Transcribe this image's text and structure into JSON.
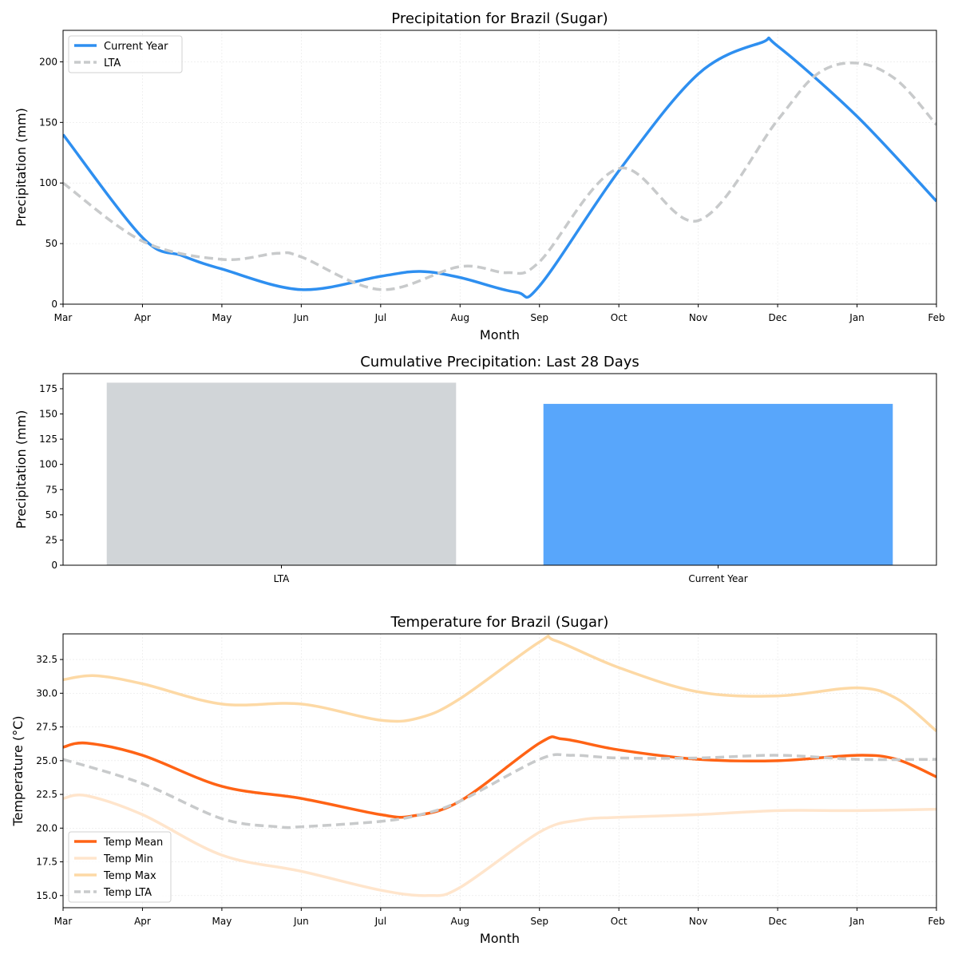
{
  "chart_data": [
    {
      "type": "line",
      "title": "Precipitation for Brazil (Sugar)",
      "xlabel": "Month",
      "ylabel": "Precipitation (mm)",
      "xticks": [
        "Mar",
        "Apr",
        "May",
        "Jun",
        "Jul",
        "Aug",
        "Sep",
        "Oct",
        "Nov",
        "Dec",
        "Jan",
        "Feb"
      ],
      "xlim": [
        0,
        11
      ],
      "ylim": [
        0,
        226
      ],
      "yticks": [
        0,
        50,
        100,
        150,
        200
      ],
      "grid": true,
      "legend_position": "top-left",
      "series": [
        {
          "name": "Current Year",
          "color": "#2e8ff0",
          "dash": false,
          "points": [
            [
              0,
              140
            ],
            [
              1,
              55
            ],
            [
              1.5,
              40
            ],
            [
              2,
              29
            ],
            [
              3,
              12
            ],
            [
              4,
              23
            ],
            [
              4.5,
              27
            ],
            [
              5,
              22
            ],
            [
              5.7,
              10
            ],
            [
              6,
              15
            ],
            [
              7,
              110
            ],
            [
              8,
              190
            ],
            [
              8.8,
              216
            ],
            [
              9,
              213
            ],
            [
              10,
              155
            ],
            [
              11,
              85
            ]
          ]
        },
        {
          "name": "LTA",
          "color": "#c8cacb",
          "dash": true,
          "points": [
            [
              0,
              100
            ],
            [
              1,
              52
            ],
            [
              2,
              37
            ],
            [
              2.7,
              42
            ],
            [
              3,
              39
            ],
            [
              4,
              12
            ],
            [
              5,
              31
            ],
            [
              5.6,
              26
            ],
            [
              6,
              35
            ],
            [
              7,
              112
            ],
            [
              8,
              69
            ],
            [
              9,
              152
            ],
            [
              9.5,
              190
            ],
            [
              10,
              199
            ],
            [
              10.5,
              185
            ],
            [
              11,
              148
            ]
          ]
        }
      ]
    },
    {
      "type": "bar",
      "title": "Cumulative Precipitation: Last 28 Days",
      "xlabel": "",
      "ylabel": "Precipitation (mm)",
      "categories": [
        "LTA",
        "Current Year"
      ],
      "values": [
        181,
        160
      ],
      "colors": [
        "#d1d5d8",
        "#58a6fb"
      ],
      "ylim": [
        0,
        190
      ],
      "yticks": [
        0,
        25,
        50,
        75,
        100,
        125,
        150,
        175
      ]
    },
    {
      "type": "line",
      "title": "Temperature for Brazil (Sugar)",
      "xlabel": "Month",
      "ylabel": "Temperature (°C)",
      "xticks": [
        "Mar",
        "Apr",
        "May",
        "Jun",
        "Jul",
        "Aug",
        "Sep",
        "Oct",
        "Nov",
        "Dec",
        "Jan",
        "Feb"
      ],
      "xlim": [
        0,
        11
      ],
      "ylim": [
        14.1,
        34.4
      ],
      "yticks": [
        "15.0",
        "17.5",
        "20.0",
        "22.5",
        "25.0",
        "27.5",
        "30.0",
        "32.5"
      ],
      "grid": true,
      "legend_position": "bottom-left",
      "series": [
        {
          "name": "Temp Mean",
          "color": "#ff6315",
          "dash": false,
          "points": [
            [
              0,
              26
            ],
            [
              0.3,
              26.3
            ],
            [
              1,
              25.4
            ],
            [
              2,
              23.1
            ],
            [
              3,
              22.2
            ],
            [
              4,
              21
            ],
            [
              4.4,
              20.9
            ],
            [
              5,
              22
            ],
            [
              6,
              26.3
            ],
            [
              6.3,
              26.6
            ],
            [
              7,
              25.8
            ],
            [
              8,
              25.1
            ],
            [
              9,
              25
            ],
            [
              10,
              25.4
            ],
            [
              10.5,
              25.1
            ],
            [
              11,
              23.8
            ]
          ]
        },
        {
          "name": "Temp Min",
          "color": "#ffe5cc",
          "dash": false,
          "points": [
            [
              0,
              22.2
            ],
            [
              0.3,
              22.4
            ],
            [
              1,
              21
            ],
            [
              2,
              18
            ],
            [
              3,
              16.8
            ],
            [
              4,
              15.4
            ],
            [
              4.6,
              15
            ],
            [
              5,
              15.6
            ],
            [
              6,
              19.7
            ],
            [
              6.5,
              20.6
            ],
            [
              7,
              20.8
            ],
            [
              8,
              21
            ],
            [
              9,
              21.3
            ],
            [
              10,
              21.3
            ],
            [
              11,
              21.4
            ]
          ]
        },
        {
          "name": "Temp Max",
          "color": "#fdd9a5",
          "dash": false,
          "points": [
            [
              0,
              31
            ],
            [
              0.4,
              31.3
            ],
            [
              1,
              30.7
            ],
            [
              2,
              29.2
            ],
            [
              3,
              29.2
            ],
            [
              4,
              28
            ],
            [
              4.5,
              28.2
            ],
            [
              5,
              29.6
            ],
            [
              6,
              33.8
            ],
            [
              6.2,
              33.9
            ],
            [
              7,
              31.9
            ],
            [
              8,
              30.1
            ],
            [
              9,
              29.8
            ],
            [
              10,
              30.4
            ],
            [
              10.5,
              29.6
            ],
            [
              11,
              27.2
            ]
          ]
        },
        {
          "name": "Temp LTA",
          "color": "#c8cacb",
          "dash": true,
          "points": [
            [
              0,
              25.1
            ],
            [
              1,
              23.3
            ],
            [
              2,
              20.7
            ],
            [
              2.7,
              20.1
            ],
            [
              3,
              20.1
            ],
            [
              4,
              20.5
            ],
            [
              4.5,
              21
            ],
            [
              5,
              22
            ],
            [
              6,
              25.1
            ],
            [
              6.4,
              25.4
            ],
            [
              7,
              25.2
            ],
            [
              8,
              25.2
            ],
            [
              9,
              25.4
            ],
            [
              10,
              25.1
            ],
            [
              11,
              25.1
            ]
          ]
        }
      ]
    }
  ]
}
